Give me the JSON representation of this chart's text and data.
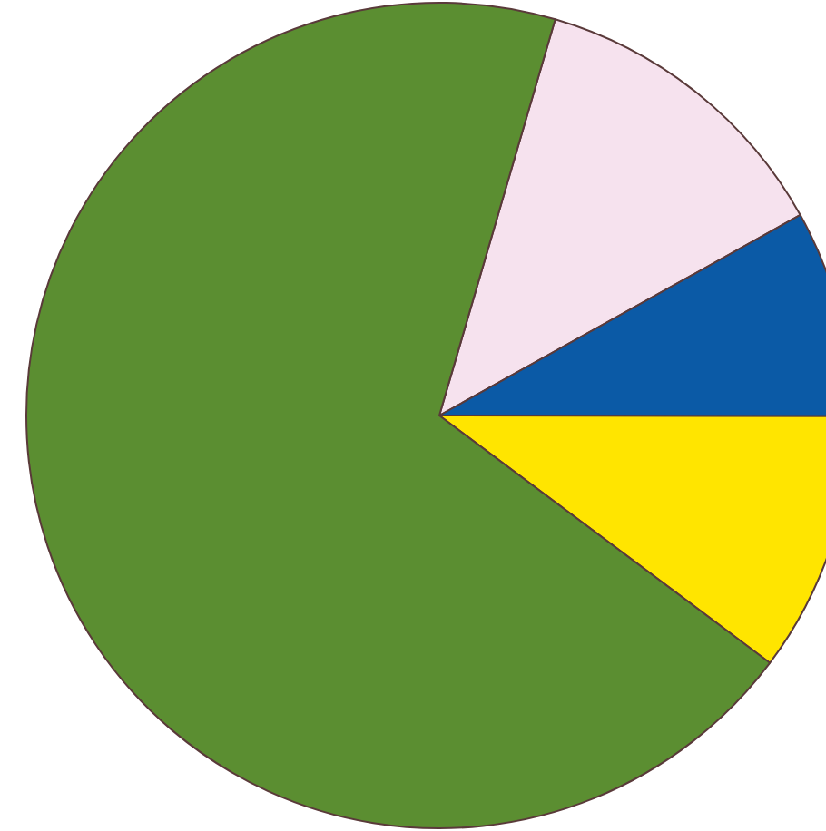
{
  "chart_data": {
    "type": "pie",
    "categories": [
      null,
      null,
      null,
      null
    ],
    "values": [
      12.4,
      8.1,
      10.2,
      69.3
    ],
    "colors": [
      "#f6e2ee",
      "#0b5aa6",
      "#ffe500",
      "#5b8e31"
    ]
  }
}
